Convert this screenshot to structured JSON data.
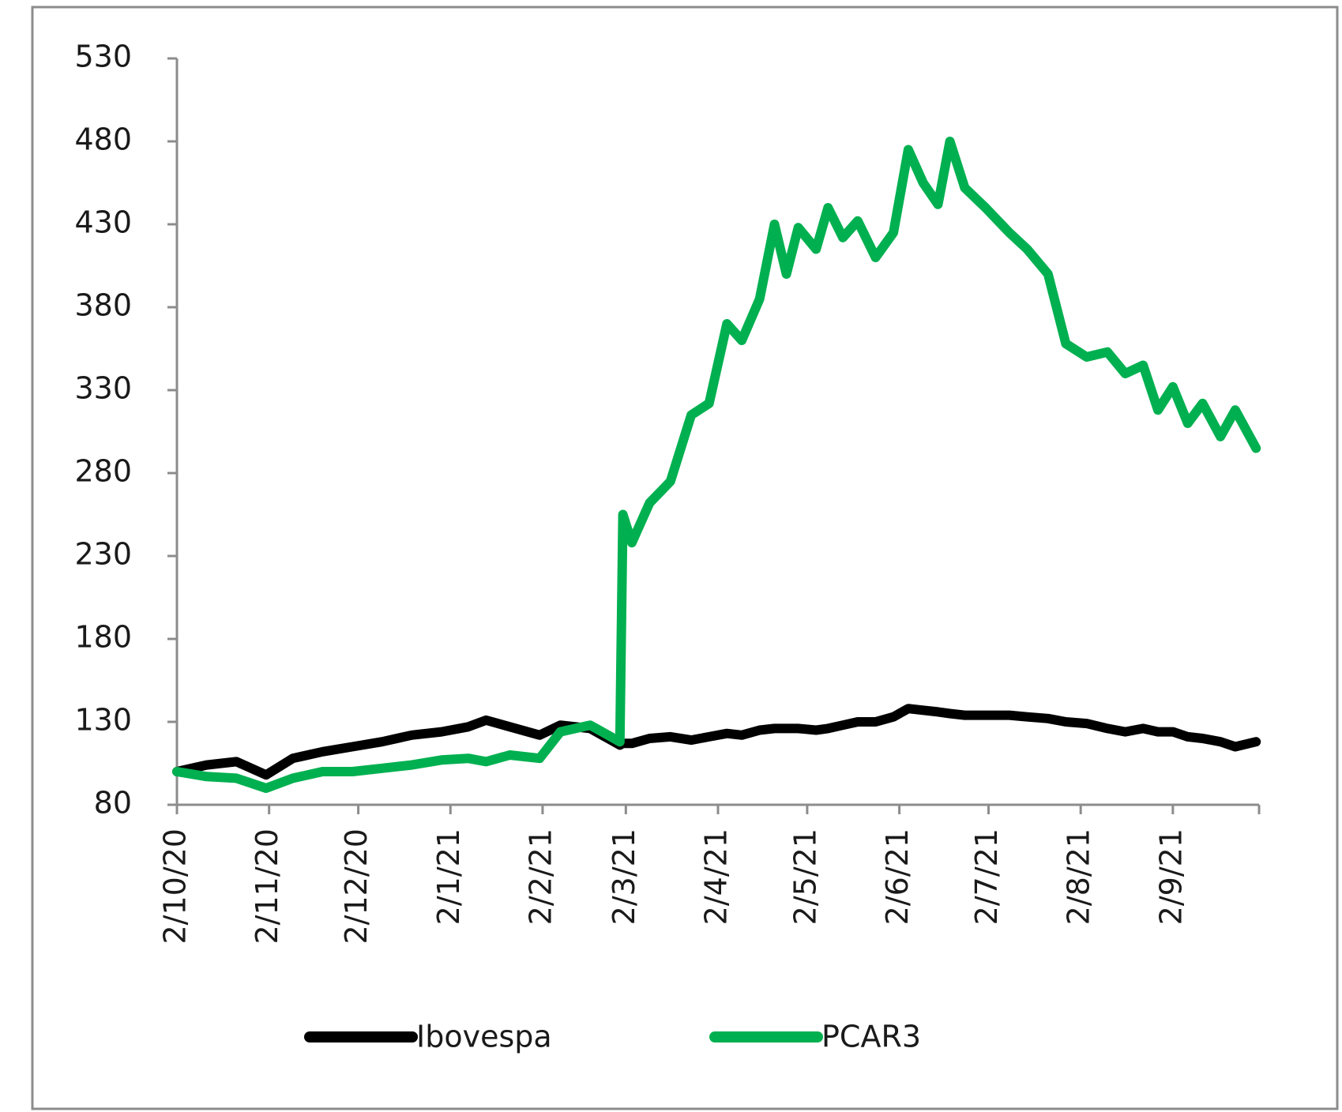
{
  "chart_data": {
    "type": "line",
    "x": [
      "2020-10-02",
      "2020-10-12",
      "2020-10-22",
      "2020-11-01",
      "2020-11-10",
      "2020-11-20",
      "2020-11-30",
      "2020-12-10",
      "2020-12-20",
      "2020-12-30",
      "2021-01-08",
      "2021-01-14",
      "2021-01-22",
      "2021-02-01",
      "2021-02-08",
      "2021-02-18",
      "2021-02-28",
      "2021-03-01",
      "2021-03-04",
      "2021-03-10",
      "2021-03-17",
      "2021-03-24",
      "2021-03-30",
      "2021-04-05",
      "2021-04-10",
      "2021-04-16",
      "2021-04-21",
      "2021-04-25",
      "2021-04-29",
      "2021-05-05",
      "2021-05-09",
      "2021-05-14",
      "2021-05-19",
      "2021-05-25",
      "2021-05-31",
      "2021-06-05",
      "2021-06-10",
      "2021-06-15",
      "2021-06-19",
      "2021-06-24",
      "2021-07-01",
      "2021-07-09",
      "2021-07-15",
      "2021-07-22",
      "2021-07-28",
      "2021-08-04",
      "2021-08-11",
      "2021-08-17",
      "2021-08-23",
      "2021-08-28",
      "2021-09-02",
      "2021-09-07",
      "2021-09-12",
      "2021-09-18",
      "2021-09-23",
      "2021-09-30"
    ],
    "series": [
      {
        "name": "Ibovespa",
        "color": "#000000",
        "values": [
          100,
          104,
          106,
          98,
          108,
          112,
          115,
          118,
          122,
          124,
          127,
          131,
          127,
          122,
          128,
          126,
          116,
          117,
          117,
          120,
          121,
          119,
          121,
          123,
          122,
          125,
          126,
          126,
          126,
          125,
          126,
          128,
          130,
          130,
          133,
          138,
          137,
          136,
          135,
          134,
          134,
          134,
          133,
          132,
          130,
          129,
          126,
          124,
          126,
          124,
          124,
          121,
          120,
          118,
          115,
          118
        ]
      },
      {
        "name": "PCAR3",
        "color": "#00b050",
        "values": [
          100,
          97,
          96,
          90,
          96,
          100,
          100,
          102,
          104,
          107,
          108,
          106,
          110,
          108,
          124,
          128,
          118,
          255,
          238,
          262,
          275,
          315,
          322,
          370,
          360,
          385,
          430,
          400,
          428,
          415,
          440,
          422,
          432,
          410,
          425,
          475,
          455,
          442,
          480,
          452,
          440,
          425,
          415,
          400,
          358,
          350,
          353,
          340,
          345,
          318,
          332,
          310,
          322,
          302,
          318,
          295
        ]
      }
    ],
    "xlim": [
      "2020-10-02",
      "2021-10-01"
    ],
    "xticks": [
      {
        "value": "2020-10-02",
        "label": "2/10/20"
      },
      {
        "value": "2020-11-02",
        "label": "2/11/20"
      },
      {
        "value": "2020-12-02",
        "label": "2/12/20"
      },
      {
        "value": "2021-01-02",
        "label": "2/1/21"
      },
      {
        "value": "2021-02-02",
        "label": "2/2/21"
      },
      {
        "value": "2021-03-02",
        "label": "2/3/21"
      },
      {
        "value": "2021-04-02",
        "label": "2/4/21"
      },
      {
        "value": "2021-05-02",
        "label": "2/5/21"
      },
      {
        "value": "2021-06-02",
        "label": "2/6/21"
      },
      {
        "value": "2021-07-02",
        "label": "2/7/21"
      },
      {
        "value": "2021-08-02",
        "label": "2/8/21"
      },
      {
        "value": "2021-09-02",
        "label": "2/9/21"
      }
    ],
    "ylim": [
      80,
      530
    ],
    "yticks": [
      80,
      130,
      180,
      230,
      280,
      330,
      380,
      430,
      480,
      530
    ]
  }
}
